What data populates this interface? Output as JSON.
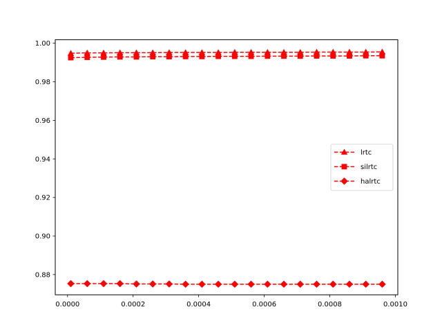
{
  "chart_data": {
    "type": "line",
    "title": "",
    "xlabel": "",
    "ylabel": "",
    "xlim": [
      -3.75e-05,
      0.0010075
    ],
    "ylim": [
      0.8695,
      1.0018
    ],
    "x_ticks": [
      {
        "value": 0.0,
        "label": "0.0000"
      },
      {
        "value": 0.0002,
        "label": "0.0002"
      },
      {
        "value": 0.0004,
        "label": "0.0004"
      },
      {
        "value": 0.0006,
        "label": "0.0006"
      },
      {
        "value": 0.0008,
        "label": "0.0008"
      },
      {
        "value": 0.001,
        "label": "0.0010"
      }
    ],
    "y_ticks": [
      {
        "value": 0.88,
        "label": "0.88"
      },
      {
        "value": 0.9,
        "label": "0.90"
      },
      {
        "value": 0.92,
        "label": "0.92"
      },
      {
        "value": 0.94,
        "label": "0.94"
      },
      {
        "value": 0.96,
        "label": "0.96"
      },
      {
        "value": 0.98,
        "label": "0.98"
      },
      {
        "value": 1.0,
        "label": "1.00"
      }
    ],
    "grid": false,
    "legend_position": "center-right",
    "x": [
      1e-05,
      6e-05,
      0.00011,
      0.00016,
      0.00021,
      0.00026,
      0.00031,
      0.00036,
      0.00041,
      0.00046,
      0.00051,
      0.00056,
      0.00061,
      0.00066,
      0.00071,
      0.00076,
      0.00081,
      0.00086,
      0.00091,
      0.00096
    ],
    "series": [
      {
        "name": "lrtc",
        "marker": "triangle",
        "color": "#ff0000",
        "linestyle": "dashed",
        "values": [
          0.9948,
          0.995,
          0.995,
          0.9951,
          0.9951,
          0.9951,
          0.9952,
          0.9952,
          0.9952,
          0.9952,
          0.9953,
          0.9953,
          0.9953,
          0.9953,
          0.9953,
          0.9954,
          0.9954,
          0.9954,
          0.9954,
          0.9955
        ]
      },
      {
        "name": "silrtc",
        "marker": "square",
        "color": "#ff0000",
        "linestyle": "dashed",
        "values": [
          0.9925,
          0.9927,
          0.9928,
          0.9929,
          0.9929,
          0.993,
          0.993,
          0.9931,
          0.9931,
          0.9932,
          0.9932,
          0.9932,
          0.9933,
          0.9933,
          0.9933,
          0.9934,
          0.9934,
          0.9934,
          0.9935,
          0.9935
        ]
      },
      {
        "name": "halrtc",
        "marker": "diamond",
        "color": "#ff0000",
        "linestyle": "dashed",
        "values": [
          0.8753,
          0.8753,
          0.8753,
          0.8753,
          0.8751,
          0.8751,
          0.8751,
          0.875,
          0.875,
          0.875,
          0.875,
          0.875,
          0.875,
          0.875,
          0.875,
          0.875,
          0.875,
          0.875,
          0.875,
          0.875
        ]
      }
    ]
  }
}
